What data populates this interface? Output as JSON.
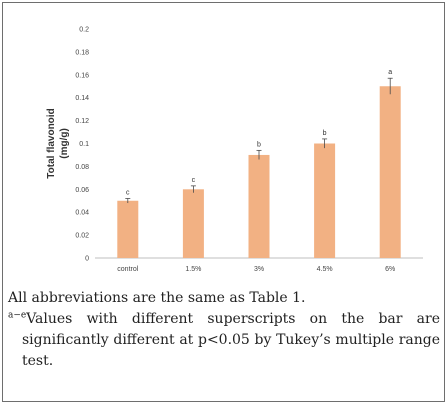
{
  "chart_data": {
    "type": "bar",
    "categories": [
      "control",
      "1.5%",
      "3%",
      "4.5%",
      "6%"
    ],
    "values": [
      0.05,
      0.06,
      0.09,
      0.1,
      0.15
    ],
    "errors": [
      0.002,
      0.003,
      0.004,
      0.004,
      0.007
    ],
    "significance": [
      "c",
      "c",
      "b",
      "b",
      "a"
    ],
    "ylabel_lines": [
      "Total flavonoid",
      "(mg/g)"
    ],
    "xlabel": "",
    "ylim": [
      0,
      0.2
    ],
    "yticks": [
      "0",
      "0.02",
      "0.04",
      "0.06",
      "0.08",
      "0.1",
      "0.12",
      "0.14",
      "0.16",
      "0.18",
      "0.2"
    ],
    "grid": false,
    "bar_color": "#f2b183",
    "error_color": "#4a4a4a"
  },
  "caption": {
    "line1": "All abbreviations are the same as Table 1.",
    "line2_sup": "a−e",
    "line2": "Values with different superscripts on the bar are significantly different at p<0.05 by Tukey’s multiple range test."
  }
}
